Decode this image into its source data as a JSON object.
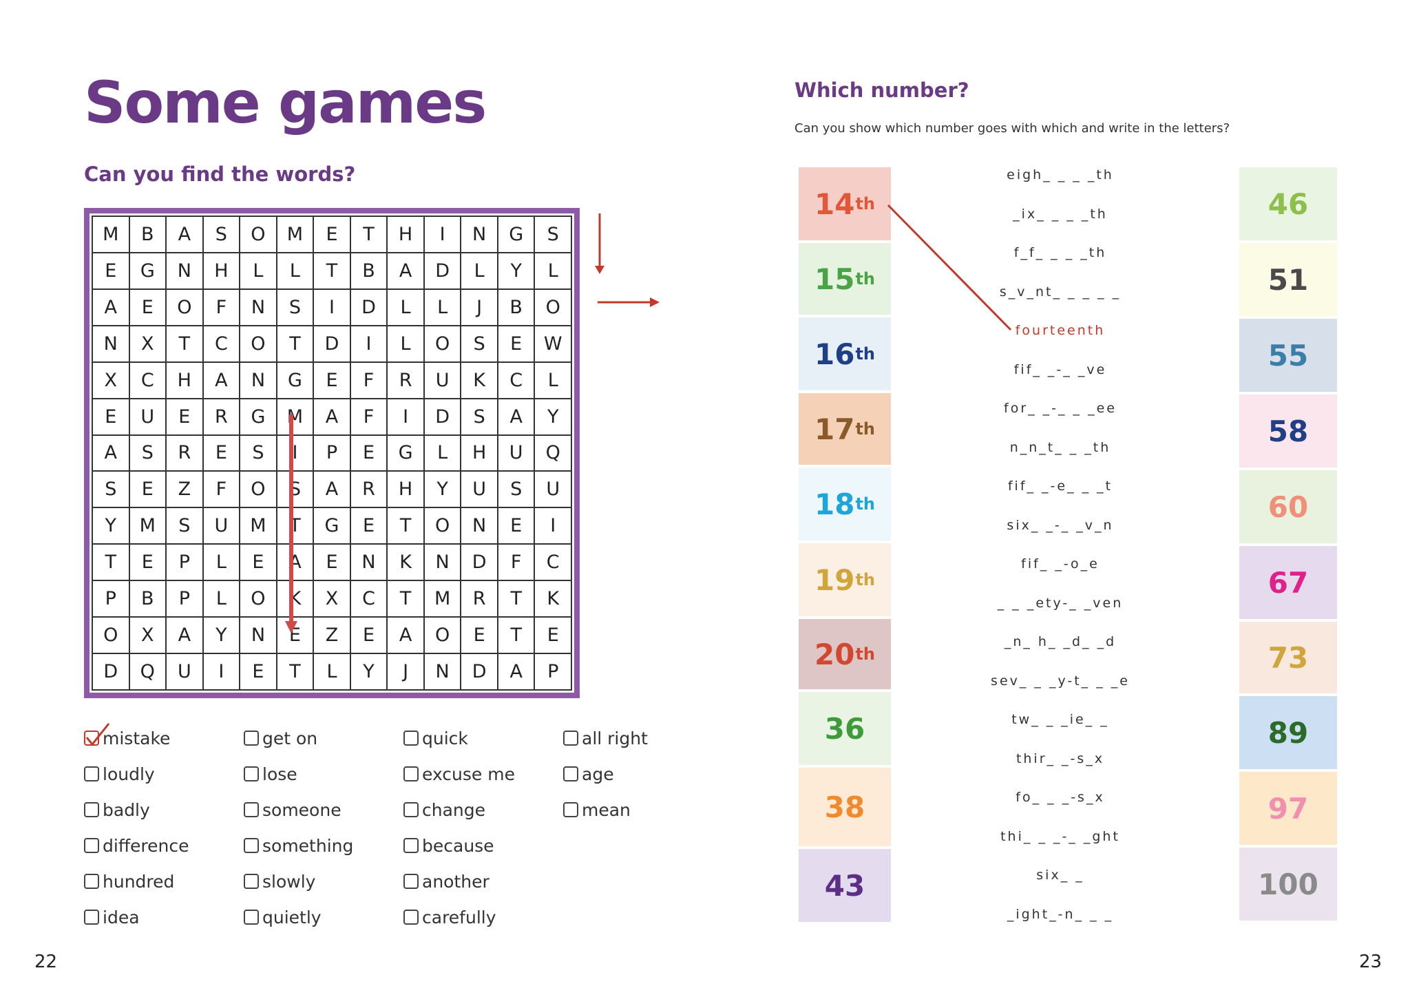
{
  "left_page": {
    "title": "Some games",
    "subtitle": "Can you find the words?",
    "page_number": "22",
    "grid_rows": [
      [
        "M",
        "B",
        "A",
        "S",
        "O",
        "M",
        "E",
        "T",
        "H",
        "I",
        "N",
        "G",
        "S"
      ],
      [
        "E",
        "G",
        "N",
        "H",
        "L",
        "L",
        "T",
        "B",
        "A",
        "D",
        "L",
        "Y",
        "L"
      ],
      [
        "A",
        "E",
        "O",
        "F",
        "N",
        "S",
        "I",
        "D",
        "L",
        "L",
        "J",
        "B",
        "O"
      ],
      [
        "N",
        "X",
        "T",
        "C",
        "O",
        "T",
        "D",
        "I",
        "L",
        "O",
        "S",
        "E",
        "W"
      ],
      [
        "X",
        "C",
        "H",
        "A",
        "N",
        "G",
        "E",
        "F",
        "R",
        "U",
        "K",
        "C",
        "L"
      ],
      [
        "E",
        "U",
        "E",
        "R",
        "G",
        "M",
        "A",
        "F",
        "I",
        "D",
        "S",
        "A",
        "Y"
      ],
      [
        "A",
        "S",
        "R",
        "E",
        "S",
        "I",
        "P",
        "E",
        "G",
        "L",
        "H",
        "U",
        "Q"
      ],
      [
        "S",
        "E",
        "Z",
        "F",
        "O",
        "S",
        "A",
        "R",
        "H",
        "Y",
        "U",
        "S",
        "U"
      ],
      [
        "Y",
        "M",
        "S",
        "U",
        "M",
        "T",
        "G",
        "E",
        "T",
        "O",
        "N",
        "E",
        "I"
      ],
      [
        "T",
        "E",
        "P",
        "L",
        "E",
        "A",
        "E",
        "N",
        "K",
        "N",
        "D",
        "F",
        "C"
      ],
      [
        "P",
        "B",
        "P",
        "L",
        "O",
        "K",
        "X",
        "C",
        "T",
        "M",
        "R",
        "T",
        "K"
      ],
      [
        "O",
        "X",
        "A",
        "Y",
        "N",
        "E",
        "Z",
        "E",
        "A",
        "O",
        "E",
        "T",
        "E"
      ],
      [
        "D",
        "Q",
        "U",
        "I",
        "E",
        "T",
        "L",
        "Y",
        "J",
        "N",
        "D",
        "A",
        "P"
      ]
    ],
    "words": [
      {
        "text": "mistake",
        "checked": true
      },
      {
        "text": "loudly",
        "checked": false
      },
      {
        "text": "badly",
        "checked": false
      },
      {
        "text": "difference",
        "checked": false
      },
      {
        "text": "hundred",
        "checked": false
      },
      {
        "text": "idea",
        "checked": false
      },
      {
        "text": "get on",
        "checked": false
      },
      {
        "text": "lose",
        "checked": false
      },
      {
        "text": "someone",
        "checked": false
      },
      {
        "text": "something",
        "checked": false
      },
      {
        "text": "slowly",
        "checked": false
      },
      {
        "text": "quietly",
        "checked": false
      },
      {
        "text": "quick",
        "checked": false
      },
      {
        "text": "excuse me",
        "checked": false
      },
      {
        "text": "change",
        "checked": false
      },
      {
        "text": "because",
        "checked": false
      },
      {
        "text": "another",
        "checked": false
      },
      {
        "text": "carefully",
        "checked": false
      },
      {
        "text": "all right",
        "checked": false
      },
      {
        "text": "age",
        "checked": false
      },
      {
        "text": "mean",
        "checked": false
      }
    ]
  },
  "right_page": {
    "title": "Which number?",
    "instruction": "Can you show which number goes with which and write in the letters?",
    "page_number": "23",
    "ordinals": [
      {
        "num": "14",
        "suffix": "th",
        "color": "#e0573a",
        "bg": "#f5cfc7"
      },
      {
        "num": "15",
        "suffix": "th",
        "color": "#4aa446",
        "bg": "#e6f3e0"
      },
      {
        "num": "16",
        "suffix": "th",
        "color": "#1f3f86",
        "bg": "#e7f0f7"
      },
      {
        "num": "17",
        "suffix": "th",
        "color": "#8a5a2b",
        "bg": "#f5d2b7"
      },
      {
        "num": "18",
        "suffix": "th",
        "color": "#1ea6dc",
        "bg": "#eef7fb"
      },
      {
        "num": "19",
        "suffix": "th",
        "color": "#d0a53c",
        "bg": "#fcefe3"
      },
      {
        "num": "20",
        "suffix": "th",
        "color": "#d1482e",
        "bg": "#dec6c6"
      },
      {
        "num": "36",
        "suffix": "",
        "color": "#3f9b3a",
        "bg": "#eaf4e4"
      },
      {
        "num": "38",
        "suffix": "",
        "color": "#f08a2c",
        "bg": "#fdebd8"
      },
      {
        "num": "43",
        "suffix": "",
        "color": "#5b2f86",
        "bg": "#e4dcee"
      }
    ],
    "clues": [
      {
        "text": "eigh_ _ _ _th",
        "done": false
      },
      {
        "text": "_ix_ _ _ _th",
        "done": false
      },
      {
        "text": "f_f_ _ _ _th",
        "done": false
      },
      {
        "text": "s_v_nt_ _ _ _ _",
        "done": false
      },
      {
        "text": "fourteenth",
        "done": true
      },
      {
        "text": "fif_ _-_ _ve",
        "done": false
      },
      {
        "text": "for_ _-_ _ _ee",
        "done": false
      },
      {
        "text": "n_n_t_ _ _th",
        "done": false
      },
      {
        "text": "fif_ _-e_ _ _t",
        "done": false
      },
      {
        "text": "six_ _-_ _v_n",
        "done": false
      },
      {
        "text": "fif_ _-o_e",
        "done": false
      },
      {
        "text": "_ _ _ety-_ _ven",
        "done": false
      },
      {
        "text": "_n_ h_ _d_ _d",
        "done": false
      },
      {
        "text": "sev_ _ _y-t_ _ _e",
        "done": false
      },
      {
        "text": "tw_ _ _ie_ _",
        "done": false
      },
      {
        "text": "thir_ _-s_x",
        "done": false
      },
      {
        "text": "fo_ _ _-s_x",
        "done": false
      },
      {
        "text": "thi_ _ _-_ _ght",
        "done": false
      },
      {
        "text": "six_ _",
        "done": false
      },
      {
        "text": "_ight_-n_ _ _",
        "done": false
      }
    ],
    "numbers": [
      {
        "num": "46",
        "color": "#8cc04a",
        "bg": "#eaf4e2"
      },
      {
        "num": "51",
        "color": "#4a4a4a",
        "bg": "#fcfbe6"
      },
      {
        "num": "55",
        "color": "#3b7fa8",
        "bg": "#d7dfea"
      },
      {
        "num": "58",
        "color": "#1f3f86",
        "bg": "#fbe6ee"
      },
      {
        "num": "60",
        "color": "#f0907a",
        "bg": "#e8f2de"
      },
      {
        "num": "67",
        "color": "#e0218a",
        "bg": "#e6dbee"
      },
      {
        "num": "73",
        "color": "#d0a53c",
        "bg": "#f9e8de"
      },
      {
        "num": "89",
        "color": "#2a6b2a",
        "bg": "#cde0f3"
      },
      {
        "num": "97",
        "color": "#f08fb0",
        "bg": "#fde9c9"
      },
      {
        "num": "100",
        "color": "#8a8a8a",
        "bg": "#ebe4ef"
      }
    ]
  }
}
